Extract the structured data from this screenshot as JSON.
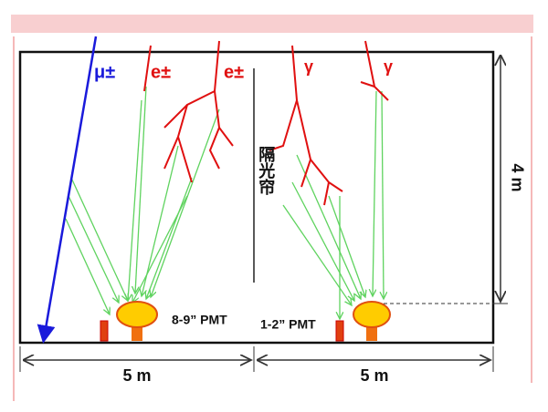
{
  "labels": {
    "muon": "μ±",
    "electron_1": "e±",
    "electron_2": "e±",
    "gamma_1": "γ",
    "gamma_2": "γ",
    "curtain": "隔光帘",
    "pmt_large": "8-9” PMT",
    "pmt_small": "1-2” PMT",
    "width_left": "5 m",
    "width_right": "5 m",
    "height": "4 m"
  }
}
